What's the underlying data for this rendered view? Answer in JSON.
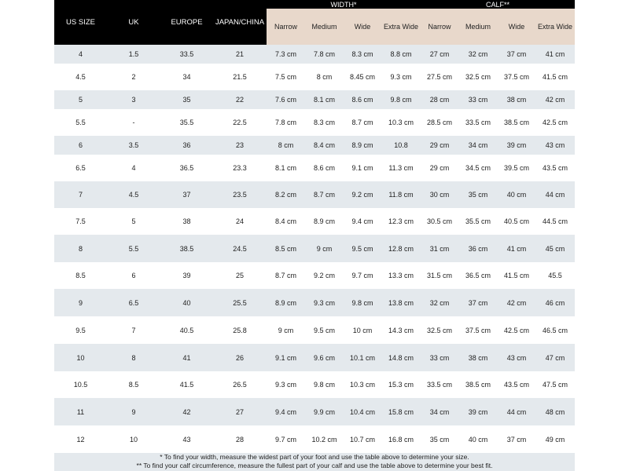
{
  "table": {
    "header": {
      "us_size": "US SIZE",
      "uk": "UK",
      "europe": "EUROPE",
      "japan_china": "JAPAN/CHINA",
      "width_group": "WIDTH*",
      "calf_group": "CALF**",
      "width_subs": [
        "Narrow",
        "Medium",
        "Wide",
        "Extra Wide"
      ],
      "calf_subs": [
        "Narrow",
        "Medium",
        "Wide",
        "Extra Wide"
      ]
    },
    "rows": [
      [
        "4",
        "1.5",
        "33.5",
        "21",
        "7.3 cm",
        "7.8 cm",
        "8.3 cm",
        "8.8 cm",
        "27 cm",
        "32 cm",
        "37 cm",
        "41 cm"
      ],
      [
        "4.5",
        "2",
        "34",
        "21.5",
        "7.5 cm",
        "8 cm",
        "8.45 cm",
        "9.3 cm",
        "27.5 cm",
        "32.5 cm",
        "37.5 cm",
        "41.5 cm"
      ],
      [
        "5",
        "3",
        "35",
        "22",
        "7.6 cm",
        "8.1 cm",
        "8.6 cm",
        "9.8 cm",
        "28 cm",
        "33 cm",
        "38 cm",
        "42 cm"
      ],
      [
        "5.5",
        "-",
        "35.5",
        "22.5",
        "7.8 cm",
        "8.3 cm",
        "8.7 cm",
        "10.3 cm",
        "28.5 cm",
        "33.5 cm",
        "38.5 cm",
        "42.5 cm"
      ],
      [
        "6",
        "3.5",
        "36",
        "23",
        "8 cm",
        "8.4 cm",
        "8.9 cm",
        "10.8",
        "29 cm",
        "34 cm",
        "39 cm",
        "43 cm"
      ],
      [
        "6.5",
        "4",
        "36.5",
        "23.3",
        "8.1 cm",
        "8.6 cm",
        "9.1 cm",
        "11.3 cm",
        "29 cm",
        "34.5 cm",
        "39.5 cm",
        "43.5 cm"
      ],
      [
        "7",
        "4.5",
        "37",
        "23.5",
        "8.2 cm",
        "8.7 cm",
        "9.2 cm",
        "11.8 cm",
        "30 cm",
        "35 cm",
        "40 cm",
        "44 cm"
      ],
      [
        "7.5",
        "5",
        "38",
        "24",
        "8.4 cm",
        "8.9 cm",
        "9.4 cm",
        "12.3 cm",
        "30.5 cm",
        "35.5 cm",
        "40.5 cm",
        "44.5 cm"
      ],
      [
        "8",
        "5.5",
        "38.5",
        "24.5",
        "8.5 cm",
        "9 cm",
        "9.5 cm",
        "12.8 cm",
        "31 cm",
        "36 cm",
        "41 cm",
        "45 cm"
      ],
      [
        "8.5",
        "6",
        "39",
        "25",
        "8.7 cm",
        "9.2 cm",
        "9.7 cm",
        "13.3 cm",
        "31.5 cm",
        "36.5 cm",
        "41.5 cm",
        "45.5"
      ],
      [
        "9",
        "6.5",
        "40",
        "25.5",
        "8.9 cm",
        "9.3 cm",
        "9.8 cm",
        "13.8 cm",
        "32 cm",
        "37 cm",
        "42 cm",
        "46 cm"
      ],
      [
        "9.5",
        "7",
        "40.5",
        "25.8",
        "9 cm",
        "9.5 cm",
        "10 cm",
        "14.3 cm",
        "32.5 cm",
        "37.5 cm",
        "42.5 cm",
        "46.5 cm"
      ],
      [
        "10",
        "8",
        "41",
        "26",
        "9.1 cm",
        "9.6 cm",
        "10.1 cm",
        "14.8 cm",
        "33 cm",
        "38 cm",
        "43 cm",
        "47 cm"
      ],
      [
        "10.5",
        "8.5",
        "41.5",
        "26.5",
        "9.3 cm",
        "9.8 cm",
        "10.3 cm",
        "15.3 cm",
        "33.5 cm",
        "38.5 cm",
        "43.5 cm",
        "47.5 cm"
      ],
      [
        "11",
        "9",
        "42",
        "27",
        "9.4 cm",
        "9.9 cm",
        "10.4 cm",
        "15.8 cm",
        "34 cm",
        "39 cm",
        "44 cm",
        "48 cm"
      ],
      [
        "12",
        "10",
        "43",
        "28",
        "9.7 cm",
        "10.2 cm",
        "10.7 cm",
        "16.8 cm",
        "35 cm",
        "40 cm",
        "37 cm",
        "49 cm"
      ]
    ],
    "footnotes": [
      "* To find your width, measure the widest part of your foot and use the table above to determine your size.",
      "** To find your calf circumference, measure the fullest part of your calf and use the table above to determine your best fit."
    ]
  },
  "colors": {
    "header_bg": "#000000",
    "subheader_bg": "#e8d8cb",
    "row_shade": "#e4e9ed"
  }
}
